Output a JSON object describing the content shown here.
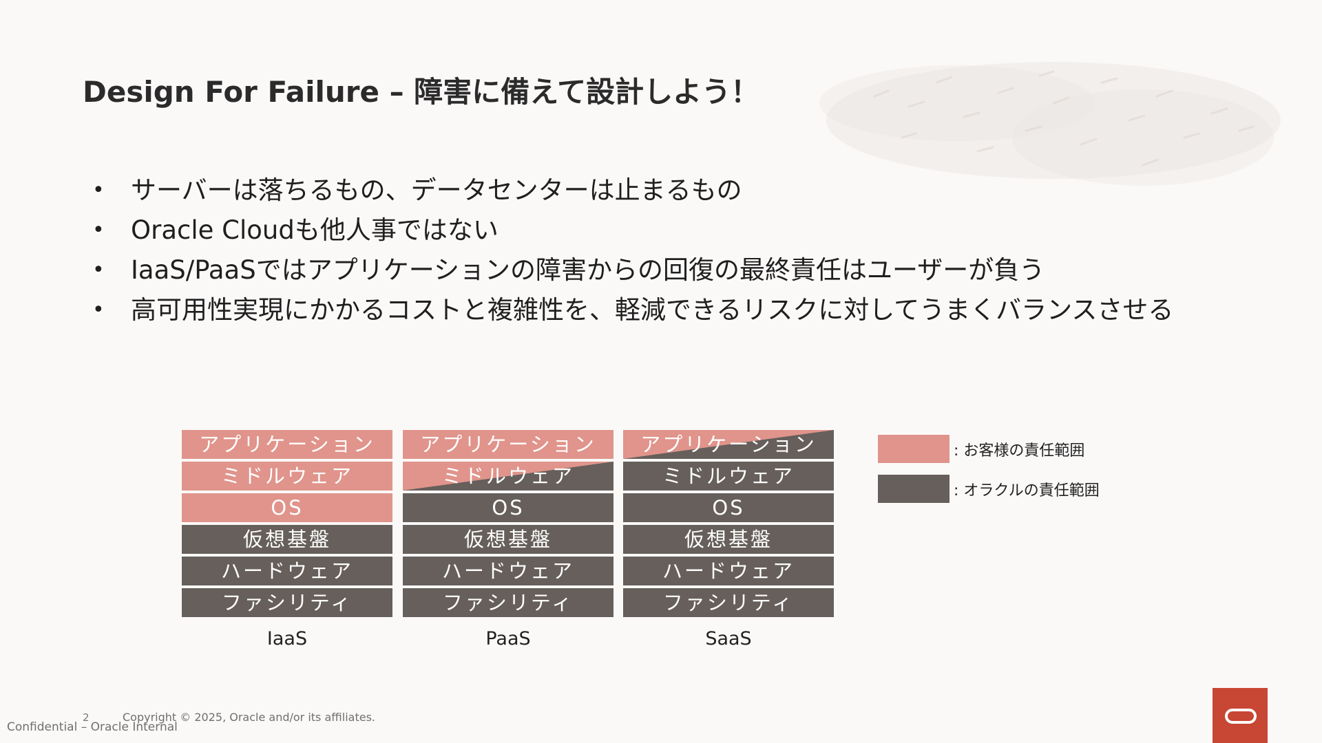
{
  "title": "Design For Failure – 障害に備えて設計しよう！",
  "bullets": [
    "サーバーは落ちるもの、データセンターは止まるもの",
    "Oracle Cloudも他人事ではない",
    "IaaS/PaaSではアプリケーションの障害からの回復の最終責任はユーザーが負う",
    "高可用性実現にかかるコストと複雑性を、軽減できるリスクに対してうまくバランスさせる"
  ],
  "bullet_glyph": "•",
  "diagram": {
    "stacks": [
      {
        "label": "IaaS",
        "layers": [
          {
            "text": "アプリケーション",
            "owner": "customer"
          },
          {
            "text": "ミドルウェア",
            "owner": "customer"
          },
          {
            "text": "OS",
            "owner": "customer"
          },
          {
            "text": "仮想基盤",
            "owner": "oracle"
          },
          {
            "text": "ハードウェア",
            "owner": "oracle"
          },
          {
            "text": "ファシリティ",
            "owner": "oracle"
          }
        ]
      },
      {
        "label": "PaaS",
        "layers": [
          {
            "text": "アプリケーション",
            "owner": "customer"
          },
          {
            "text": "ミドルウェア",
            "owner": "shared"
          },
          {
            "text": "OS",
            "owner": "oracle"
          },
          {
            "text": "仮想基盤",
            "owner": "oracle"
          },
          {
            "text": "ハードウェア",
            "owner": "oracle"
          },
          {
            "text": "ファシリティ",
            "owner": "oracle"
          }
        ]
      },
      {
        "label": "SaaS",
        "layers": [
          {
            "text": "アプリケーション",
            "owner": "shared"
          },
          {
            "text": "ミドルウェア",
            "owner": "oracle"
          },
          {
            "text": "OS",
            "owner": "oracle"
          },
          {
            "text": "仮想基盤",
            "owner": "oracle"
          },
          {
            "text": "ハードウェア",
            "owner": "oracle"
          },
          {
            "text": "ファシリティ",
            "owner": "oracle"
          }
        ]
      }
    ],
    "legend": [
      {
        "text": ": お客様の責任範囲",
        "color": "#e0948b"
      },
      {
        "text": ": オラクルの責任範囲",
        "color": "#665f5b"
      }
    ]
  },
  "footer": {
    "page_number": "2",
    "copyright": "Copyright © 2025, Oracle and/or its affiliates.",
    "confidential": "Confidential – Oracle Internal"
  },
  "colors": {
    "customer": "#e0948b",
    "oracle": "#665f5b",
    "logo_red": "#c74634",
    "background": "#fbf9f8"
  },
  "icons": {
    "logo": "oracle-logo-icon",
    "decoration": "pattern-decoration"
  }
}
